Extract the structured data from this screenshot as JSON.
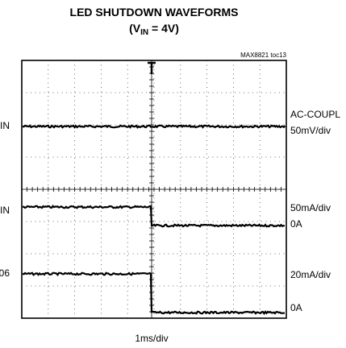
{
  "header": {
    "title": "LED SHUTDOWN WAVEFORMS",
    "subtitle_open": "(V",
    "subtitle_sub": "IN",
    "subtitle_close": " = 4V)",
    "code": "MAX8821 toc13"
  },
  "left_labels": [
    "IN",
    "IN",
    "06"
  ],
  "right_labels": [
    "AC-COUPL",
    "50mV/div",
    "50mA/div",
    "0A",
    "20mA/div",
    "0A"
  ],
  "timebase": "1ms/div"
}
